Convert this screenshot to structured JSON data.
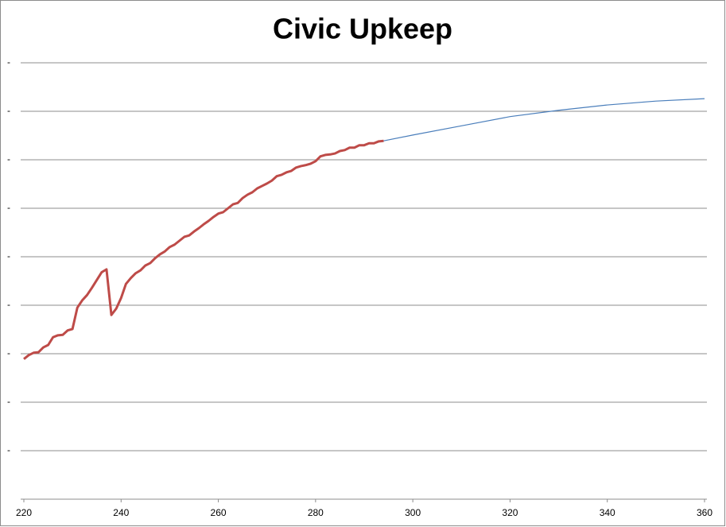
{
  "chart_data": {
    "type": "line",
    "title": "Civic Upkeep",
    "xlim": [
      220,
      360
    ],
    "xticks": [
      220,
      240,
      260,
      280,
      300,
      320,
      340,
      360
    ],
    "ylim": [
      0,
      9
    ],
    "yticks": [
      {
        "value": 1,
        "label": "-"
      },
      {
        "value": 2,
        "label": "-"
      },
      {
        "value": 3,
        "label": "-"
      },
      {
        "value": 4,
        "label": "-"
      },
      {
        "value": 5,
        "label": "-"
      },
      {
        "value": 6,
        "label": "-"
      },
      {
        "value": 7,
        "label": "-"
      },
      {
        "value": 8,
        "label": "-"
      },
      {
        "value": 9,
        "label": "-"
      }
    ],
    "grid": true,
    "series": [
      {
        "color": "#4a7ebb",
        "width": 1.2,
        "x": [
          294,
          300,
          310,
          320,
          330,
          340,
          350,
          360
        ],
        "values": [
          7.39,
          7.51,
          7.7,
          7.89,
          8.02,
          8.13,
          8.21,
          8.26
        ]
      },
      {
        "color": "#be4b48",
        "width": 3,
        "x": [
          220,
          221,
          222,
          223,
          224,
          225,
          226,
          227,
          228,
          229,
          230,
          231,
          232,
          233,
          234,
          235,
          236,
          237,
          238,
          239,
          240,
          241,
          242,
          243,
          244,
          245,
          246,
          247,
          248,
          249,
          250,
          251,
          252,
          253,
          254,
          255,
          256,
          257,
          258,
          259,
          260,
          261,
          262,
          263,
          264,
          265,
          266,
          267,
          268,
          269,
          270,
          271,
          272,
          273,
          274,
          275,
          276,
          277,
          278,
          279,
          280,
          281,
          282,
          283,
          284,
          285,
          286,
          287,
          288,
          289,
          290,
          291,
          292,
          293,
          294
        ],
        "values": [
          2.89,
          2.97,
          3.02,
          3.03,
          3.13,
          3.18,
          3.34,
          3.38,
          3.39,
          3.48,
          3.51,
          3.95,
          4.1,
          4.21,
          4.36,
          4.52,
          4.68,
          4.74,
          3.8,
          3.93,
          4.15,
          4.44,
          4.56,
          4.66,
          4.72,
          4.82,
          4.87,
          4.97,
          5.05,
          5.11,
          5.2,
          5.25,
          5.33,
          5.41,
          5.44,
          5.52,
          5.59,
          5.67,
          5.74,
          5.82,
          5.89,
          5.92,
          6.0,
          6.08,
          6.11,
          6.21,
          6.28,
          6.33,
          6.41,
          6.46,
          6.51,
          6.57,
          6.66,
          6.69,
          6.74,
          6.77,
          6.84,
          6.87,
          6.89,
          6.92,
          6.97,
          7.07,
          7.1,
          7.11,
          7.13,
          7.18,
          7.2,
          7.25,
          7.25,
          7.3,
          7.3,
          7.34,
          7.34,
          7.38,
          7.39
        ]
      }
    ]
  }
}
